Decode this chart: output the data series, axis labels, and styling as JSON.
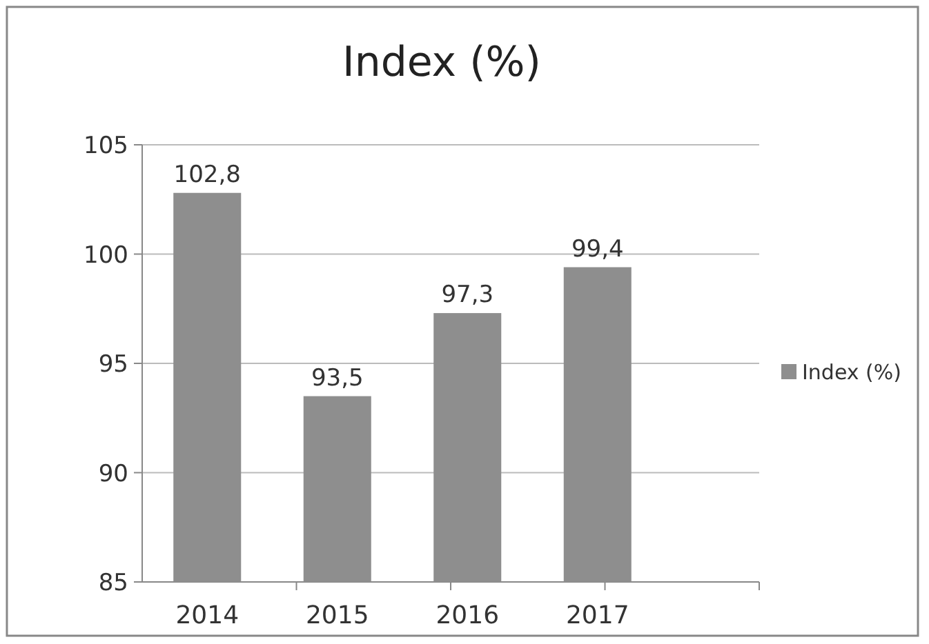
{
  "chart_data": {
    "type": "bar",
    "title": "Index (%)",
    "categories": [
      "2014",
      "2015",
      "2016",
      "2017"
    ],
    "series": [
      {
        "name": "Index (%)",
        "color": "#8e8e8e",
        "values": [
          102.8,
          93.5,
          97.3,
          99.4
        ],
        "value_labels": [
          "102,8",
          "93,5",
          "97,3",
          "99,4"
        ]
      }
    ],
    "ylim": [
      85,
      105
    ],
    "yticks": [
      85,
      90,
      95,
      100,
      105
    ],
    "grid": "y",
    "legend": "right"
  }
}
